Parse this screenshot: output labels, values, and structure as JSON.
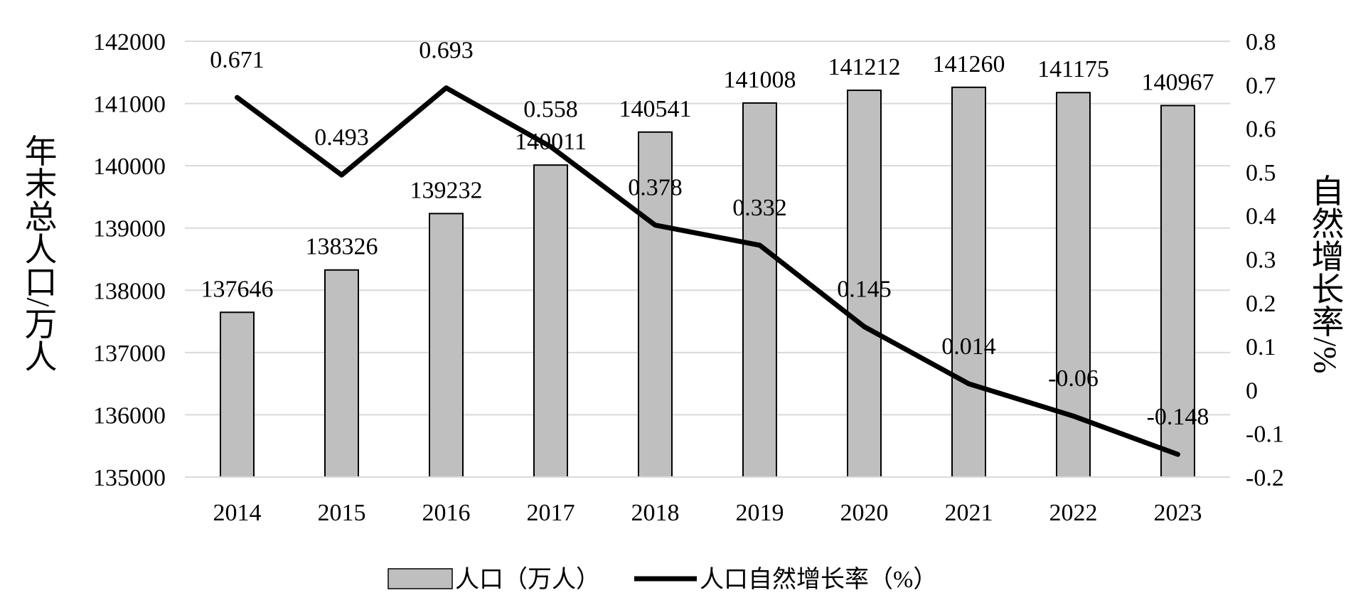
{
  "chart_data": {
    "type": "bar",
    "categories": [
      "2014",
      "2015",
      "2016",
      "2017",
      "2018",
      "2019",
      "2020",
      "2021",
      "2022",
      "2023"
    ],
    "series": [
      {
        "name": "人口（万人）",
        "type": "bar",
        "axis": "left",
        "color": "#bfbfbf",
        "values": [
          137646,
          138326,
          139232,
          140011,
          140541,
          141008,
          141212,
          141260,
          141175,
          140967
        ]
      },
      {
        "name": "人口自然增长率（%）",
        "type": "line",
        "axis": "right",
        "color": "#000000",
        "values": [
          0.671,
          0.493,
          0.693,
          0.558,
          0.378,
          0.332,
          0.145,
          0.014,
          -0.06,
          -0.148
        ]
      }
    ],
    "y_left": {
      "label": "年末总人口/万人",
      "range": [
        135000,
        142000
      ],
      "ticks": [
        "135000",
        "136000",
        "137000",
        "138000",
        "139000",
        "140000",
        "141000",
        "142000"
      ]
    },
    "y_right": {
      "label": "自然增长率/%",
      "range": [
        -0.2,
        0.8
      ],
      "ticks": [
        "-0.2",
        "-0.1",
        "0",
        "0.1",
        "0.2",
        "0.3",
        "0.4",
        "0.5",
        "0.6",
        "0.7",
        "0.8"
      ]
    },
    "grid": true,
    "legend_position": "bottom-center"
  }
}
